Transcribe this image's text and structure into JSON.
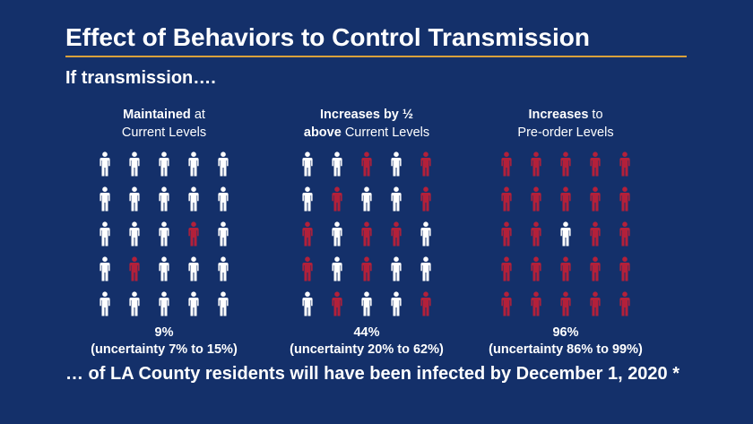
{
  "title": "Effect of Behaviors to Control Transmission",
  "subtitle": "If transmission….",
  "footer": "… of LA County residents will have been infected by December 1, 2020 *",
  "colors": {
    "background": "#14306a",
    "not_infected": "#ffffff",
    "infected": "#b3203a",
    "rule": "#d9a13b"
  },
  "chart_data": [
    {
      "type": "pictograph",
      "scenario_bold": "Maintained",
      "scenario_rest": " at",
      "scenario_line2_bold": "",
      "scenario_line2_rest": "Current Levels",
      "percent": "9%",
      "uncertainty": "(uncertainty 7% to 15%)",
      "grid": [
        [
          0,
          0,
          0,
          0,
          0
        ],
        [
          0,
          0,
          0,
          0,
          0
        ],
        [
          0,
          0,
          0,
          1,
          0
        ],
        [
          0,
          1,
          0,
          0,
          0
        ],
        [
          0,
          0,
          0,
          0,
          0
        ]
      ]
    },
    {
      "type": "pictograph",
      "scenario_bold": "Increases by ½",
      "scenario_rest": "",
      "scenario_line2_bold": "above",
      "scenario_line2_rest": " Current Levels",
      "percent": "44%",
      "uncertainty": "(uncertainty 20% to 62%)",
      "grid": [
        [
          0,
          0,
          1,
          0,
          1
        ],
        [
          0,
          1,
          0,
          0,
          1
        ],
        [
          1,
          0,
          1,
          1,
          0
        ],
        [
          1,
          0,
          1,
          0,
          0
        ],
        [
          0,
          1,
          0,
          0,
          1
        ]
      ]
    },
    {
      "type": "pictograph",
      "scenario_bold": "Increases",
      "scenario_rest": " to",
      "scenario_line2_bold": "",
      "scenario_line2_rest": "Pre-order Levels",
      "percent": "96%",
      "uncertainty": "(uncertainty 86% to 99%)",
      "grid": [
        [
          1,
          1,
          1,
          1,
          1
        ],
        [
          1,
          1,
          1,
          1,
          1
        ],
        [
          1,
          1,
          0,
          1,
          1
        ],
        [
          1,
          1,
          1,
          1,
          1
        ],
        [
          1,
          1,
          1,
          1,
          1
        ]
      ]
    }
  ]
}
